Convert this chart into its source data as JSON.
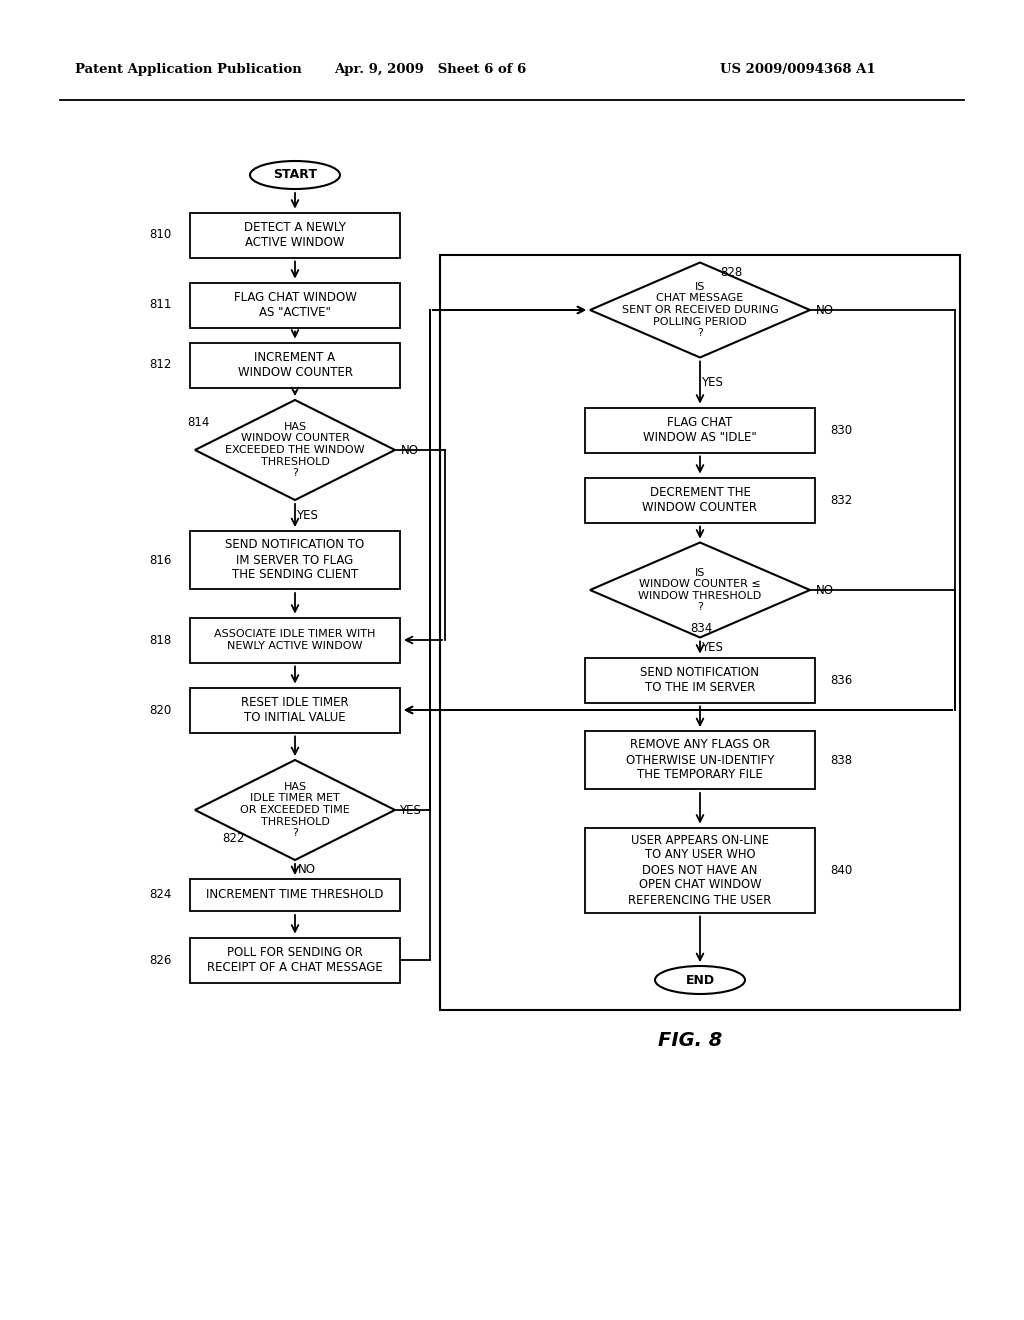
{
  "header_left": "Patent Application Publication",
  "header_mid": "Apr. 9, 2009   Sheet 6 of 6",
  "header_right": "US 2009/0094368 A1",
  "figure_label": "FIG. 8",
  "background": "#ffffff"
}
